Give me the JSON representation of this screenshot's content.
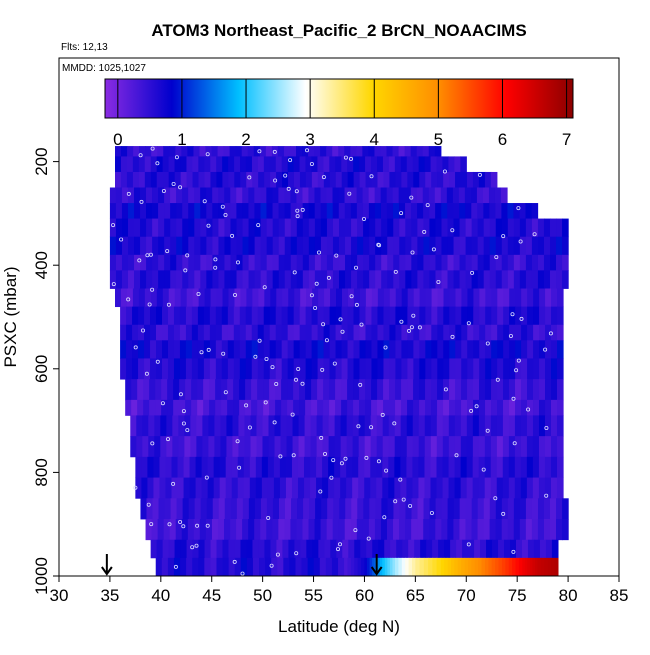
{
  "chart_data": {
    "type": "heatmap",
    "title": "ATOM3 Northeast_Pacific_2 BrCN_NOAACIMS",
    "annotations": [
      "Flts: 12,13",
      "MMDD: 1025,1027"
    ],
    "xlabel": "Latitude (deg N)",
    "ylabel": "PSXC (mbar)",
    "xlim": [
      30,
      85
    ],
    "ylim": [
      1000,
      0
    ],
    "x_ticks": [
      "30",
      "35",
      "40",
      "45",
      "50",
      "55",
      "60",
      "65",
      "70",
      "75",
      "80",
      "85"
    ],
    "y_ticks": [
      "200",
      "400",
      "600",
      "800",
      "1000"
    ],
    "colorbar": {
      "range": [
        -0.2,
        7.1
      ],
      "ticks": [
        "0",
        "1",
        "2",
        "3",
        "4",
        "5",
        "6",
        "7"
      ],
      "colors": [
        "#8a2be2",
        "#0000cd",
        "#00bfff",
        "#ffffff",
        "#ffd700",
        "#ff8c00",
        "#ff0000",
        "#8b0000"
      ]
    },
    "grid": false,
    "markers": [
      {
        "x": 34.7,
        "label": "flight-start-arrow"
      },
      {
        "x": 61.2,
        "label": "flight-end-arrow"
      }
    ],
    "bands": [
      {
        "p_top": 170,
        "p_bot": 190,
        "x_min": 35.5,
        "x_max": 67.5,
        "value": 0.5
      },
      {
        "p_top": 190,
        "p_bot": 220,
        "x_min": 35.5,
        "x_max": 70.0,
        "value": 0.6
      },
      {
        "p_top": 220,
        "p_bot": 250,
        "x_min": 35.5,
        "x_max": 73.0,
        "value": 0.55
      },
      {
        "p_top": 250,
        "p_bot": 280,
        "x_min": 35.0,
        "x_max": 74.0,
        "value": 0.5
      },
      {
        "p_top": 280,
        "p_bot": 310,
        "x_min": 35.0,
        "x_max": 77.0,
        "value": 0.7
      },
      {
        "p_top": 310,
        "p_bot": 345,
        "x_min": 35.0,
        "x_max": 80.0,
        "value": 0.6
      },
      {
        "p_top": 345,
        "p_bot": 380,
        "x_min": 35.0,
        "x_max": 80.0,
        "value": 0.65
      },
      {
        "p_top": 380,
        "p_bot": 410,
        "x_min": 35.0,
        "x_max": 80.0,
        "value": 0.5
      },
      {
        "p_top": 410,
        "p_bot": 445,
        "x_min": 35.0,
        "x_max": 80.0,
        "value": 0.55
      },
      {
        "p_top": 445,
        "p_bot": 480,
        "x_min": 35.5,
        "x_max": 79.5,
        "value": 0.4
      },
      {
        "p_top": 480,
        "p_bot": 515,
        "x_min": 36.0,
        "x_max": 79.5,
        "value": 0.6
      },
      {
        "p_top": 515,
        "p_bot": 545,
        "x_min": 36.0,
        "x_max": 79.5,
        "value": 0.5
      },
      {
        "p_top": 545,
        "p_bot": 580,
        "x_min": 36.0,
        "x_max": 79.5,
        "value": 0.7
      },
      {
        "p_top": 580,
        "p_bot": 620,
        "x_min": 36.0,
        "x_max": 79.5,
        "value": 0.6
      },
      {
        "p_top": 620,
        "p_bot": 660,
        "x_min": 36.5,
        "x_max": 79.5,
        "value": 0.45
      },
      {
        "p_top": 660,
        "p_bot": 690,
        "x_min": 36.5,
        "x_max": 79.5,
        "value": 0.35
      },
      {
        "p_top": 690,
        "p_bot": 730,
        "x_min": 37.0,
        "x_max": 79.5,
        "value": 0.5
      },
      {
        "p_top": 730,
        "p_bot": 770,
        "x_min": 37.0,
        "x_max": 79.5,
        "value": 0.4
      },
      {
        "p_top": 770,
        "p_bot": 810,
        "x_min": 37.5,
        "x_max": 79.5,
        "value": 0.55
      },
      {
        "p_top": 810,
        "p_bot": 850,
        "x_min": 37.5,
        "x_max": 79.5,
        "value": 0.5
      },
      {
        "p_top": 850,
        "p_bot": 890,
        "x_min": 38.0,
        "x_max": 80.0,
        "value": 0.45
      },
      {
        "p_top": 890,
        "p_bot": 930,
        "x_min": 38.5,
        "x_max": 80.0,
        "value": 0.4
      },
      {
        "p_top": 930,
        "p_bot": 965,
        "x_min": 39.0,
        "x_max": 79.0,
        "value": 0.55
      },
      {
        "p_top": 965,
        "p_bot": 1000,
        "x_min": 39.5,
        "x_max": 58.0,
        "value": 0.6
      }
    ],
    "gradient_row": {
      "p_top": 965,
      "p_bot": 1000,
      "x": [
        58.0,
        60.0,
        61.5,
        63.0,
        65.0,
        67.5,
        69.5,
        71.5,
        73.5,
        75.5,
        77.0,
        79.0
      ],
      "values": [
        0.3,
        0.8,
        1.8,
        2.6,
        3.4,
        4.0,
        4.6,
        5.1,
        5.6,
        6.2,
        6.6,
        6.8
      ]
    }
  }
}
